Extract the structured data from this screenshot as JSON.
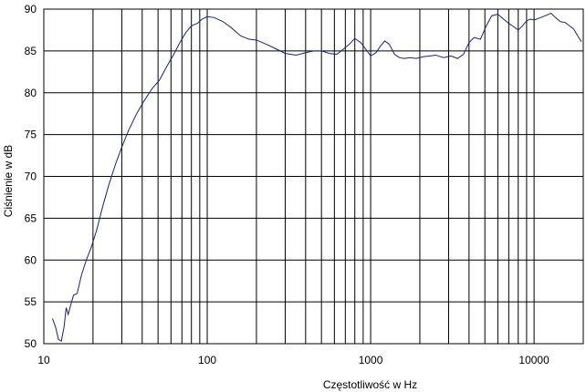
{
  "chart_data": {
    "type": "line",
    "title": "",
    "xlabel": "Częstotliwość w Hz",
    "ylabel": "Ciśnienie w dB",
    "xscale": "log",
    "xlim": [
      10,
      20000
    ],
    "ylim": [
      50,
      90
    ],
    "xticks": [
      10,
      100,
      1000,
      10000
    ],
    "xtick_labels": [
      "10",
      "100",
      "1000",
      "10000"
    ],
    "yticks": [
      50,
      55,
      60,
      65,
      70,
      75,
      80,
      85,
      90
    ],
    "ytick_labels": [
      "50",
      "55",
      "60",
      "65",
      "70",
      "75",
      "80",
      "85",
      "90"
    ],
    "grid": true,
    "legend": "none",
    "line_color": "#1f1f7a",
    "series": [
      {
        "x": [
          11.3,
          11.8,
          12.3,
          12.8,
          13.3,
          13.7,
          14.1,
          14.6,
          15.2,
          16.0,
          17.0,
          18.2,
          19.5,
          21,
          23,
          25,
          27.5,
          30,
          33,
          37,
          41,
          46,
          51,
          56,
          62,
          68,
          74,
          80,
          87,
          93,
          100,
          110,
          125,
          140,
          160,
          180,
          200,
          230,
          260,
          300,
          350,
          400,
          450,
          500,
          560,
          620,
          680,
          740,
          800,
          870,
          950,
          1000,
          1080,
          1150,
          1220,
          1300,
          1400,
          1500,
          1600,
          1750,
          1900,
          2100,
          2300,
          2500,
          2800,
          3100,
          3400,
          3700,
          4000,
          4300,
          4700,
          5100,
          5500,
          6000,
          6500,
          7000,
          7500,
          8000,
          8500,
          9000,
          9500,
          10000,
          11000,
          12000,
          12700,
          13500,
          14500,
          15500,
          16500,
          17500,
          18500,
          19500
        ],
        "y": [
          53,
          52,
          50.5,
          50.3,
          52,
          54.3,
          53.5,
          54.6,
          55.8,
          56,
          58.2,
          60,
          61.5,
          63.5,
          66.5,
          69,
          71.5,
          73.5,
          75.5,
          77.5,
          79,
          80.5,
          81.5,
          83,
          84.5,
          86,
          87.2,
          88,
          88.3,
          88.8,
          89.1,
          89,
          88.5,
          87.8,
          86.8,
          86.4,
          86.3,
          85.8,
          85.3,
          84.7,
          84.5,
          84.8,
          85,
          85,
          84.7,
          84.6,
          85.2,
          85.8,
          86.5,
          86,
          85,
          84.4,
          84.8,
          85.6,
          86.2,
          85.8,
          84.6,
          84.2,
          84.1,
          84.2,
          84.1,
          84.3,
          84.4,
          84.5,
          84.2,
          84.4,
          84.1,
          84.6,
          86.0,
          86.6,
          86.4,
          88.0,
          89.2,
          89.4,
          88.8,
          88.3,
          87.9,
          87.5,
          88.0,
          88.6,
          88.8,
          88.7,
          89.0,
          89.3,
          89.5,
          89.0,
          88.5,
          88.4,
          88.0,
          87.6,
          86.8,
          86.1
        ]
      }
    ]
  }
}
